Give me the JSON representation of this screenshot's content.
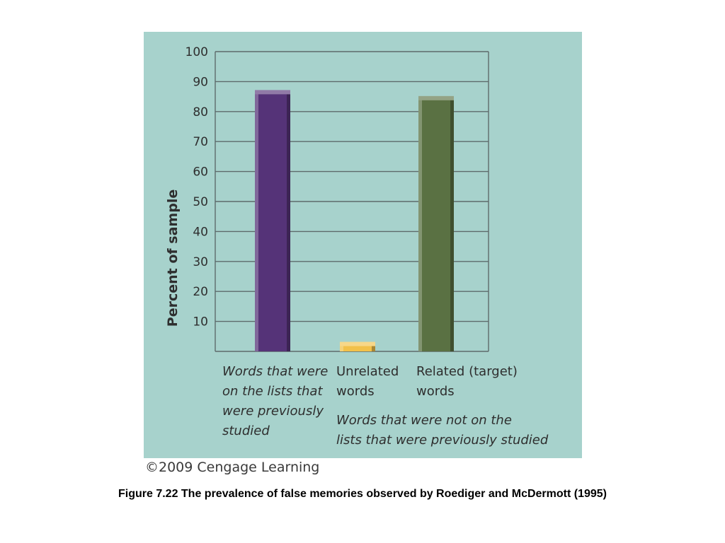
{
  "chart_data": {
    "type": "bar",
    "ylabel": "Percent of sample",
    "ylim": [
      0,
      100
    ],
    "yticks": [
      10,
      20,
      30,
      40,
      50,
      60,
      70,
      80,
      90,
      100
    ],
    "grid": true,
    "categories": [
      "Words that were\non the lists that\nwere previously\nstudied",
      "Unrelated\nwords",
      "Related (target)\nwords"
    ],
    "values": [
      86,
      2,
      84
    ],
    "colors": [
      "#553378",
      "#f2c14a",
      "#5a7143"
    ],
    "group_annotation": "Words that were not on the\nlists that were previously studied"
  },
  "copyright": "©2009 Cengage Learning",
  "caption": "Figure 7.22  The prevalence of false memories observed by Roediger and McDermott (1995)"
}
